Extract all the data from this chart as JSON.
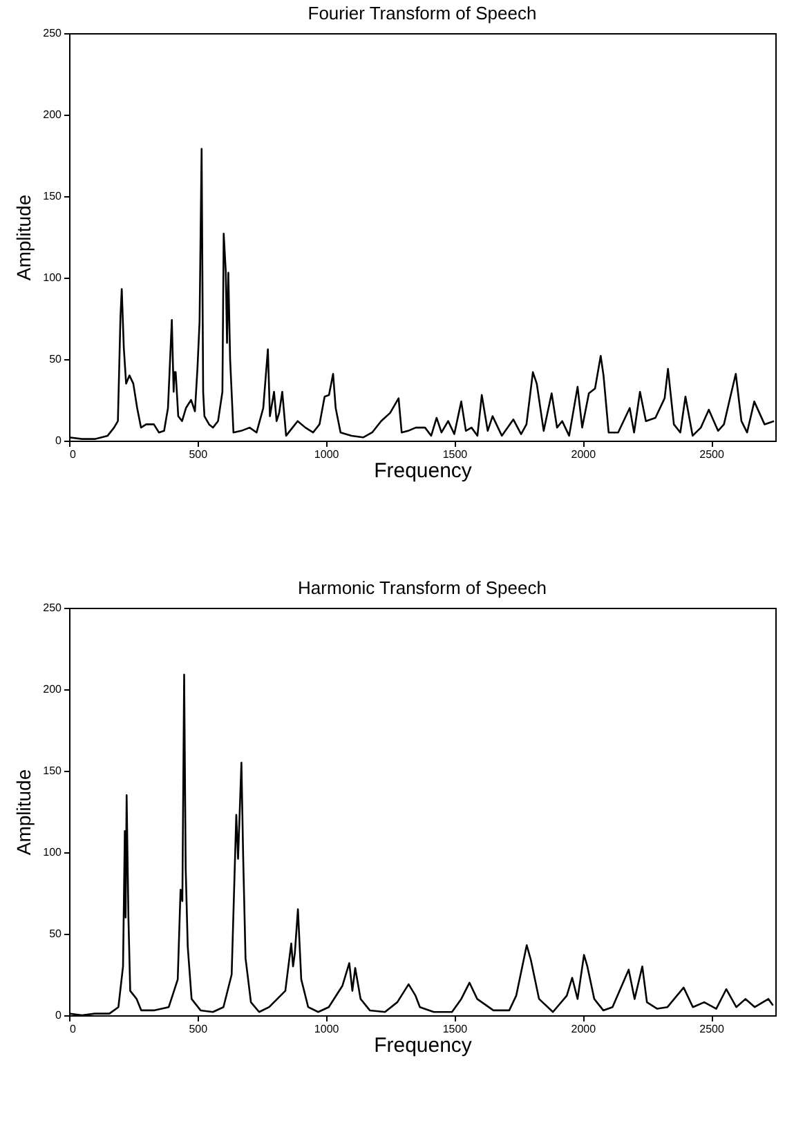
{
  "chart_data": [
    {
      "type": "line",
      "title": "Fourier Transform of Speech",
      "xlabel": "Frequency",
      "ylabel": "Amplitude",
      "xlim": [
        0,
        2750
      ],
      "ylim": [
        0,
        250
      ],
      "xticks": [
        0,
        500,
        1000,
        1500,
        2000,
        2500
      ],
      "yticks": [
        0,
        50,
        100,
        150,
        200,
        250
      ],
      "x": [
        0,
        50,
        100,
        150,
        175,
        190,
        200,
        205,
        213,
        222,
        235,
        250,
        265,
        280,
        300,
        330,
        350,
        370,
        385,
        400,
        407,
        411,
        415,
        425,
        440,
        455,
        475,
        490,
        500,
        508,
        516,
        522,
        527,
        545,
        560,
        580,
        597,
        602,
        610,
        615,
        620,
        627,
        640,
        670,
        703,
        730,
        756,
        774,
        782,
        798,
        808,
        818,
        830,
        845,
        870,
        890,
        920,
        950,
        975,
        995,
        1012,
        1028,
        1038,
        1057,
        1100,
        1145,
        1180,
        1215,
        1250,
        1283,
        1295,
        1320,
        1350,
        1386,
        1410,
        1431,
        1450,
        1476,
        1500,
        1527,
        1545,
        1567,
        1590,
        1607,
        1630,
        1649,
        1685,
        1730,
        1760,
        1781,
        1806,
        1821,
        1848,
        1879,
        1900,
        1920,
        1947,
        1980,
        1998,
        2024,
        2048,
        2070,
        2081,
        2101,
        2138,
        2183,
        2200,
        2223,
        2246,
        2283,
        2319,
        2332,
        2355,
        2380,
        2400,
        2428,
        2460,
        2491,
        2527,
        2550,
        2572,
        2596,
        2618,
        2640,
        2668,
        2708,
        2745
      ],
      "series": [
        {
          "color": "#000000",
          "values": [
            2,
            1,
            1,
            3,
            8,
            12,
            76,
            93,
            57,
            35,
            40,
            35,
            20,
            8,
            10,
            10,
            5,
            6,
            20,
            74,
            30,
            42,
            42,
            15,
            12,
            20,
            25,
            18,
            45,
            73,
            179,
            30,
            15,
            10,
            8,
            12,
            30,
            127,
            104,
            60,
            103,
            50,
            5,
            6,
            8,
            5,
            20,
            56,
            15,
            30,
            12,
            17,
            30,
            3,
            8,
            12,
            8,
            5,
            10,
            27,
            28,
            41,
            20,
            5,
            3,
            2,
            5,
            12,
            17,
            26,
            5,
            6,
            8,
            8,
            3,
            14,
            5,
            12,
            4,
            24,
            6,
            8,
            3,
            28,
            6,
            15,
            3,
            13,
            4,
            10,
            42,
            35,
            6,
            29,
            8,
            12,
            3,
            33,
            8,
            29,
            32,
            52,
            40,
            5,
            5,
            20,
            5,
            30,
            12,
            14,
            26,
            44,
            10,
            5,
            27,
            3,
            8,
            19,
            6,
            10,
            25,
            41,
            12,
            5,
            24,
            10,
            12
          ]
        }
      ]
    },
    {
      "type": "line",
      "title": "Harmonic Transform of Speech",
      "xlabel": "Frequency",
      "ylabel": "Amplitude",
      "xlim": [
        0,
        2750
      ],
      "ylim": [
        0,
        250
      ],
      "xticks": [
        0,
        500,
        1000,
        1500,
        2000,
        2500
      ],
      "yticks": [
        0,
        50,
        100,
        150,
        200,
        250
      ],
      "x": [
        0,
        50,
        100,
        157,
        192,
        210,
        217,
        220,
        224,
        231,
        238,
        263,
        281,
        330,
        388,
        423,
        434,
        441,
        448,
        454,
        462,
        477,
        512,
        560,
        601,
        633,
        651,
        658,
        671,
        678,
        687,
        708,
        740,
        779,
        842,
        865,
        872,
        879,
        891,
        904,
        931,
        970,
        1011,
        1064,
        1091,
        1103,
        1114,
        1135,
        1171,
        1230,
        1278,
        1322,
        1349,
        1366,
        1420,
        1491,
        1527,
        1559,
        1589,
        1652,
        1714,
        1741,
        1782,
        1798,
        1830,
        1884,
        1938,
        1959,
        1980,
        2005,
        2018,
        2045,
        2080,
        2116,
        2179,
        2202,
        2232,
        2250,
        2290,
        2330,
        2393,
        2429,
        2473,
        2520,
        2559,
        2598,
        2634,
        2670,
        2723,
        2741
      ],
      "series": [
        {
          "color": "#000000",
          "values": [
            1,
            0,
            1,
            1,
            5,
            30,
            113,
            60,
            135,
            60,
            15,
            10,
            3,
            3,
            5,
            22,
            77,
            70,
            209,
            90,
            42,
            10,
            3,
            2,
            5,
            25,
            123,
            96,
            155,
            96,
            35,
            8,
            2,
            5,
            15,
            44,
            30,
            38,
            65,
            22,
            5,
            2,
            5,
            18,
            32,
            15,
            29,
            10,
            3,
            2,
            8,
            19,
            12,
            5,
            2,
            2,
            10,
            20,
            10,
            3,
            3,
            12,
            43,
            34,
            10,
            2,
            12,
            23,
            10,
            37,
            30,
            10,
            3,
            5,
            28,
            10,
            30,
            8,
            4,
            5,
            17,
            5,
            8,
            4,
            16,
            5,
            10,
            5,
            10,
            6
          ]
        }
      ]
    }
  ]
}
